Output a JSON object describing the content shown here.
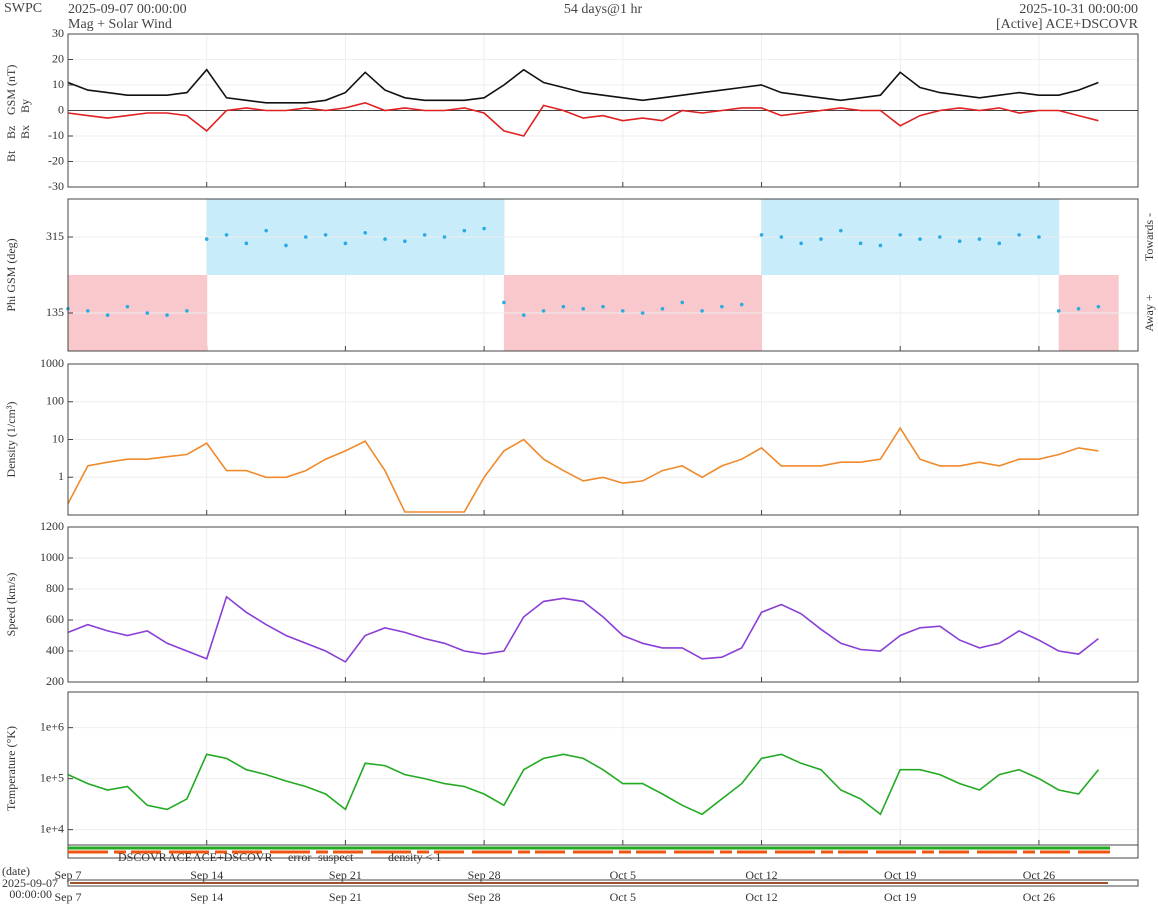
{
  "header": {
    "site": "SWPC",
    "start": "2025-09-07 00:00:00",
    "product": "Mag + Solar Wind",
    "span": "54 days@1 hr",
    "end": "2025-10-31 00:00:00",
    "source": "[Active] ACE+DSCOVR"
  },
  "footer": {
    "date_label": "(date)",
    "start_date": "2025-09-07",
    "start_time": "00:00:00",
    "legend": [
      {
        "text": "DSCOVR",
        "color": "#2222cc"
      },
      {
        "text": "ACE",
        "color": "#22aa22"
      },
      {
        "text": "ACE+DSCOVR",
        "color": "#dd22dd"
      },
      {
        "text": "error",
        "color": "#dd2222"
      },
      {
        "text": "suspect",
        "color": "#e8b800"
      },
      {
        "text": "density < 1",
        "color": "#f08a2c"
      }
    ]
  },
  "chart_data": [
    {
      "type": "line",
      "y_label": "GSM (nT)",
      "y_label_color": "#e02020",
      "extra_labels": [
        {
          "text": "Bx",
          "color": "#8a3fd6"
        },
        {
          "text": "By",
          "color": "#29abe2"
        }
      ],
      "x": [
        "2025-09-07",
        "2025-09-08",
        "2025-09-09",
        "2025-09-10",
        "2025-09-11",
        "2025-09-12",
        "2025-09-13",
        "2025-09-14",
        "2025-09-15",
        "2025-09-16",
        "2025-09-17",
        "2025-09-18",
        "2025-09-19",
        "2025-09-20",
        "2025-09-21",
        "2025-09-22",
        "2025-09-23",
        "2025-09-24",
        "2025-09-25",
        "2025-09-26",
        "2025-09-27",
        "2025-09-28",
        "2025-09-29",
        "2025-09-30",
        "2025-10-01",
        "2025-10-02",
        "2025-10-03",
        "2025-10-04",
        "2025-10-05",
        "2025-10-06",
        "2025-10-07",
        "2025-10-08",
        "2025-10-09",
        "2025-10-10",
        "2025-10-11",
        "2025-10-12",
        "2025-10-13",
        "2025-10-14",
        "2025-10-15",
        "2025-10-16",
        "2025-10-17",
        "2025-10-18",
        "2025-10-19",
        "2025-10-20",
        "2025-10-21",
        "2025-10-22",
        "2025-10-23",
        "2025-10-24",
        "2025-10-25",
        "2025-10-26",
        "2025-10-27",
        "2025-10-28",
        "2025-10-29"
      ],
      "xlim": [
        "2025-09-07",
        "2025-10-31"
      ],
      "series": [
        {
          "name": "Bt",
          "color": "#111111",
          "values": [
            11,
            8,
            7,
            6,
            6,
            6,
            7,
            16,
            5,
            4,
            3,
            3,
            3,
            4,
            7,
            15,
            8,
            5,
            4,
            4,
            4,
            5,
            10,
            16,
            11,
            9,
            7,
            6,
            5,
            4,
            5,
            6,
            7,
            8,
            9,
            10,
            7,
            6,
            5,
            4,
            5,
            6,
            15,
            9,
            7,
            6,
            5,
            6,
            7,
            6,
            6,
            8,
            11
          ]
        },
        {
          "name": "Bz",
          "color": "#e02020",
          "values": [
            -1,
            -2,
            -3,
            -2,
            -1,
            -1,
            -2,
            -8,
            0,
            1,
            0,
            0,
            1,
            0,
            1,
            3,
            0,
            1,
            0,
            0,
            1,
            -1,
            -8,
            -10,
            2,
            0,
            -3,
            -2,
            -4,
            -3,
            -4,
            0,
            -1,
            0,
            1,
            1,
            -2,
            -1,
            0,
            1,
            0,
            0,
            -6,
            -2,
            0,
            1,
            0,
            1,
            -1,
            0,
            0,
            -2,
            -4
          ]
        }
      ],
      "ylim": [
        -30,
        30
      ],
      "yticks": [
        -30,
        -20,
        -10,
        0,
        10,
        20,
        30
      ],
      "grid": true
    },
    {
      "type": "scatter",
      "y_label": "Phi GSM (deg)",
      "color": "#29abe2",
      "towards_color": "#c8ecfa",
      "away_color": "#f8c8cc",
      "sector_boundary": 225,
      "right_labels": [
        "Towards -",
        "Away +"
      ],
      "x": [
        "2025-09-07",
        "2025-09-08",
        "2025-09-09",
        "2025-09-10",
        "2025-09-11",
        "2025-09-12",
        "2025-09-13",
        "2025-09-14",
        "2025-09-15",
        "2025-09-16",
        "2025-09-17",
        "2025-09-18",
        "2025-09-19",
        "2025-09-20",
        "2025-09-21",
        "2025-09-22",
        "2025-09-23",
        "2025-09-24",
        "2025-09-25",
        "2025-09-26",
        "2025-09-27",
        "2025-09-28",
        "2025-09-29",
        "2025-09-30",
        "2025-10-01",
        "2025-10-02",
        "2025-10-03",
        "2025-10-04",
        "2025-10-05",
        "2025-10-06",
        "2025-10-07",
        "2025-10-08",
        "2025-10-09",
        "2025-10-10",
        "2025-10-11",
        "2025-10-12",
        "2025-10-13",
        "2025-10-14",
        "2025-10-15",
        "2025-10-16",
        "2025-10-17",
        "2025-10-18",
        "2025-10-19",
        "2025-10-20",
        "2025-10-21",
        "2025-10-22",
        "2025-10-23",
        "2025-10-24",
        "2025-10-25",
        "2025-10-26",
        "2025-10-27",
        "2025-10-28",
        "2025-10-29"
      ],
      "xlim": [
        "2025-09-07",
        "2025-10-31"
      ],
      "values": [
        145,
        140,
        130,
        150,
        135,
        130,
        140,
        310,
        320,
        300,
        330,
        295,
        315,
        320,
        300,
        325,
        310,
        305,
        320,
        315,
        330,
        335,
        160,
        130,
        140,
        150,
        145,
        150,
        140,
        135,
        145,
        160,
        140,
        150,
        155,
        320,
        315,
        300,
        310,
        330,
        300,
        295,
        320,
        310,
        315,
        305,
        310,
        300,
        320,
        315,
        140,
        145,
        150
      ],
      "ylim": [
        45,
        405
      ],
      "yticks": [
        135,
        315
      ],
      "grid": true
    },
    {
      "type": "line",
      "y_label": "Density (1/cm³)",
      "color": "#f08a2c",
      "log_scale": true,
      "x": [
        "2025-09-07",
        "2025-09-08",
        "2025-09-09",
        "2025-09-10",
        "2025-09-11",
        "2025-09-12",
        "2025-09-13",
        "2025-09-14",
        "2025-09-15",
        "2025-09-16",
        "2025-09-17",
        "2025-09-18",
        "2025-09-19",
        "2025-09-20",
        "2025-09-21",
        "2025-09-22",
        "2025-09-23",
        "2025-09-24",
        "2025-09-25",
        "2025-09-26",
        "2025-09-27",
        "2025-09-28",
        "2025-09-29",
        "2025-09-30",
        "2025-10-01",
        "2025-10-02",
        "2025-10-03",
        "2025-10-04",
        "2025-10-05",
        "2025-10-06",
        "2025-10-07",
        "2025-10-08",
        "2025-10-09",
        "2025-10-10",
        "2025-10-11",
        "2025-10-12",
        "2025-10-13",
        "2025-10-14",
        "2025-10-15",
        "2025-10-16",
        "2025-10-17",
        "2025-10-18",
        "2025-10-19",
        "2025-10-20",
        "2025-10-21",
        "2025-10-22",
        "2025-10-23",
        "2025-10-24",
        "2025-10-25",
        "2025-10-26",
        "2025-10-27",
        "2025-10-28",
        "2025-10-29"
      ],
      "xlim": [
        "2025-09-07",
        "2025-10-31"
      ],
      "values": [
        0.2,
        2,
        2.5,
        3,
        3,
        3.5,
        4,
        8,
        1.5,
        1.5,
        1,
        1,
        1.5,
        3,
        5,
        9,
        1.5,
        0.12,
        0.12,
        0.12,
        0.12,
        1,
        5,
        10,
        3,
        1.5,
        0.8,
        1,
        0.7,
        0.8,
        1.5,
        2,
        1,
        2,
        3,
        6,
        2,
        2,
        2,
        2.5,
        2.5,
        3,
        20,
        3,
        2,
        2,
        2.5,
        2,
        3,
        3,
        4,
        6,
        5
      ],
      "ylim": [
        0.1,
        1000
      ],
      "yticks": [
        1,
        10,
        100,
        1000
      ],
      "grid": true
    },
    {
      "type": "line",
      "y_label": "Speed (km/s)",
      "color": "#8a3fd6",
      "x": [
        "2025-09-07",
        "2025-09-08",
        "2025-09-09",
        "2025-09-10",
        "2025-09-11",
        "2025-09-12",
        "2025-09-13",
        "2025-09-14",
        "2025-09-15",
        "2025-09-16",
        "2025-09-17",
        "2025-09-18",
        "2025-09-19",
        "2025-09-20",
        "2025-09-21",
        "2025-09-22",
        "2025-09-23",
        "2025-09-24",
        "2025-09-25",
        "2025-09-26",
        "2025-09-27",
        "2025-09-28",
        "2025-09-29",
        "2025-09-30",
        "2025-10-01",
        "2025-10-02",
        "2025-10-03",
        "2025-10-04",
        "2025-10-05",
        "2025-10-06",
        "2025-10-07",
        "2025-10-08",
        "2025-10-09",
        "2025-10-10",
        "2025-10-11",
        "2025-10-12",
        "2025-10-13",
        "2025-10-14",
        "2025-10-15",
        "2025-10-16",
        "2025-10-17",
        "2025-10-18",
        "2025-10-19",
        "2025-10-20",
        "2025-10-21",
        "2025-10-22",
        "2025-10-23",
        "2025-10-24",
        "2025-10-25",
        "2025-10-26",
        "2025-10-27",
        "2025-10-28",
        "2025-10-29"
      ],
      "xlim": [
        "2025-09-07",
        "2025-10-31"
      ],
      "values": [
        520,
        570,
        530,
        500,
        530,
        450,
        400,
        350,
        750,
        650,
        570,
        500,
        450,
        400,
        330,
        500,
        550,
        520,
        480,
        450,
        400,
        380,
        400,
        620,
        720,
        740,
        720,
        620,
        500,
        450,
        420,
        420,
        350,
        360,
        420,
        650,
        700,
        640,
        540,
        450,
        410,
        400,
        500,
        550,
        560,
        470,
        420,
        450,
        530,
        470,
        400,
        380,
        480
      ],
      "ylim": [
        200,
        1200
      ],
      "yticks": [
        200,
        400,
        600,
        800,
        1000,
        1200
      ],
      "grid": true
    },
    {
      "type": "line",
      "y_label": "Temperature (°K)",
      "color": "#22aa22",
      "log_scale": true,
      "x": [
        "2025-09-07",
        "2025-09-08",
        "2025-09-09",
        "2025-09-10",
        "2025-09-11",
        "2025-09-12",
        "2025-09-13",
        "2025-09-14",
        "2025-09-15",
        "2025-09-16",
        "2025-09-17",
        "2025-09-18",
        "2025-09-19",
        "2025-09-20",
        "2025-09-21",
        "2025-09-22",
        "2025-09-23",
        "2025-09-24",
        "2025-09-25",
        "2025-09-26",
        "2025-09-27",
        "2025-09-28",
        "2025-09-29",
        "2025-09-30",
        "2025-10-01",
        "2025-10-02",
        "2025-10-03",
        "2025-10-04",
        "2025-10-05",
        "2025-10-06",
        "2025-10-07",
        "2025-10-08",
        "2025-10-09",
        "2025-10-10",
        "2025-10-11",
        "2025-10-12",
        "2025-10-13",
        "2025-10-14",
        "2025-10-15",
        "2025-10-16",
        "2025-10-17",
        "2025-10-18",
        "2025-10-19",
        "2025-10-20",
        "2025-10-21",
        "2025-10-22",
        "2025-10-23",
        "2025-10-24",
        "2025-10-25",
        "2025-10-26",
        "2025-10-27",
        "2025-10-28",
        "2025-10-29"
      ],
      "xlim": [
        "2025-09-07",
        "2025-10-31"
      ],
      "values": [
        120000,
        80000,
        60000,
        70000,
        30000,
        25000,
        40000,
        300000,
        250000,
        150000,
        120000,
        90000,
        70000,
        50000,
        25000,
        200000,
        180000,
        120000,
        100000,
        80000,
        70000,
        50000,
        30000,
        150000,
        250000,
        300000,
        250000,
        150000,
        80000,
        80000,
        50000,
        30000,
        20000,
        40000,
        80000,
        250000,
        300000,
        200000,
        150000,
        60000,
        40000,
        20000,
        150000,
        150000,
        120000,
        80000,
        60000,
        120000,
        150000,
        100000,
        60000,
        50000,
        150000
      ],
      "ylim": [
        5000,
        5000000
      ],
      "yticks": [
        {
          "value": 10000,
          "label": "1e+4"
        },
        {
          "value": 100000,
          "label": "1e+5"
        },
        {
          "value": 1000000,
          "label": "1e+6"
        }
      ],
      "grid": true,
      "xticks": [
        {
          "value": "2025-09-07",
          "label": "Sep 7"
        },
        {
          "value": "2025-09-14",
          "label": "Sep 14"
        },
        {
          "value": "2025-09-21",
          "label": "Sep 21"
        },
        {
          "value": "2025-09-28",
          "label": "Sep 28"
        },
        {
          "value": "2025-10-05",
          "label": "Oct 5"
        },
        {
          "value": "2025-10-12",
          "label": "Oct 12"
        },
        {
          "value": "2025-10-19",
          "label": "Oct 19"
        },
        {
          "value": "2025-10-26",
          "label": "Oct 26"
        }
      ]
    }
  ]
}
